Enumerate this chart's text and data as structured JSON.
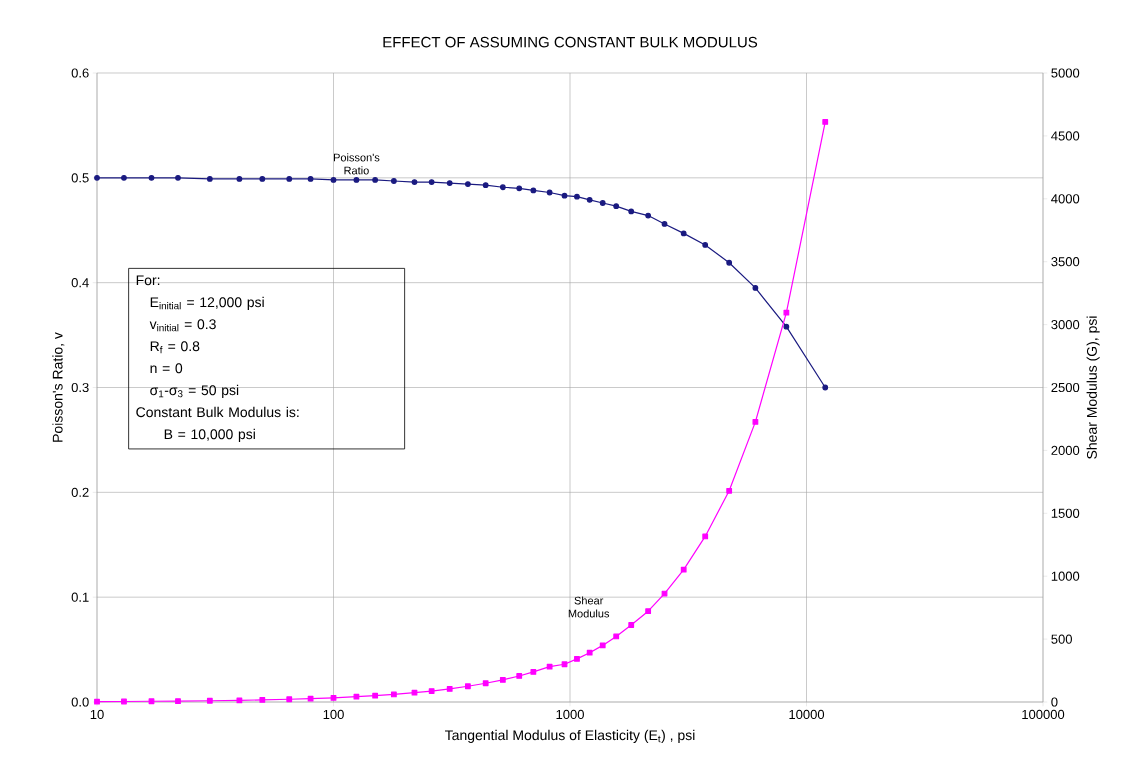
{
  "chart_data": {
    "type": "line",
    "title": "EFFECT OF ASSUMING CONSTANT BULK MODULUS",
    "xlabel": "Tangential Modulus of Elasticity (E$_{t}$) , psi",
    "ylabel": "Poisson's Ratio, v",
    "y2label": "Shear Modulus (G), psi",
    "log": "x",
    "grid": true,
    "xlim": [
      10,
      100000
    ],
    "xticks": [
      10,
      100,
      1000,
      10000,
      100000
    ],
    "ylim": [
      0,
      0.6
    ],
    "yticks": [
      {
        "value": 0,
        "label": "0.0"
      },
      0.1,
      0.2,
      0.3,
      0.4,
      0.5,
      0.6
    ],
    "y2lim": [
      0,
      5000
    ],
    "y2ticks": [
      0,
      500,
      1000,
      1500,
      2000,
      2500,
      3000,
      3500,
      4000,
      4500,
      5000
    ],
    "x": [
      10,
      13,
      17,
      22,
      30,
      40,
      50,
      65,
      80,
      100,
      125,
      150,
      180,
      220,
      260,
      310,
      370,
      440,
      520,
      610,
      700,
      820,
      948,
      1070,
      1211,
      1375,
      1568,
      1815,
      2140,
      2510,
      3025,
      3730,
      4710,
      6080,
      8220,
      12000
    ],
    "series": [
      {
        "name": "Poisson's Ratio",
        "marker": "circle",
        "color": "#1a1a80",
        "values": [
          0.5,
          0.5,
          0.5,
          0.5,
          0.499,
          0.499,
          0.499,
          0.499,
          0.499,
          0.498,
          0.498,
          0.498,
          0.497,
          0.496,
          0.496,
          0.495,
          0.494,
          0.493,
          0.491,
          0.49,
          0.488,
          0.486,
          0.483,
          0.482,
          0.479,
          0.476,
          0.473,
          0.468,
          0.464,
          0.456,
          0.447,
          0.436,
          0.419,
          0.395,
          0.358,
          0.3
        ]
      },
      {
        "name": "Shear Modulus",
        "marker": "square",
        "color": "#ff00ff",
        "axis": "y2",
        "values": [
          3,
          4,
          6,
          7,
          10,
          13,
          17,
          22,
          27,
          33,
          42,
          50,
          60,
          74,
          87,
          104,
          125,
          149,
          176,
          207,
          239,
          281,
          300,
          343,
          392,
          450,
          521,
          612,
          722,
          862,
          1052,
          1316,
          1679,
          2227,
          3095,
          4611
        ]
      }
    ],
    "annotations": [
      "For:",
      "E$_{initial}$ = 12,000 psi",
      "v$_{initial}$ = 0.3",
      "R$_{f}$ = 0.8",
      "n = 0",
      "σ$_{1}$-σ$_{3}$ = 50 psi",
      "Constant Bulk Modulus is:",
      "B = 10,000 psi"
    ]
  }
}
